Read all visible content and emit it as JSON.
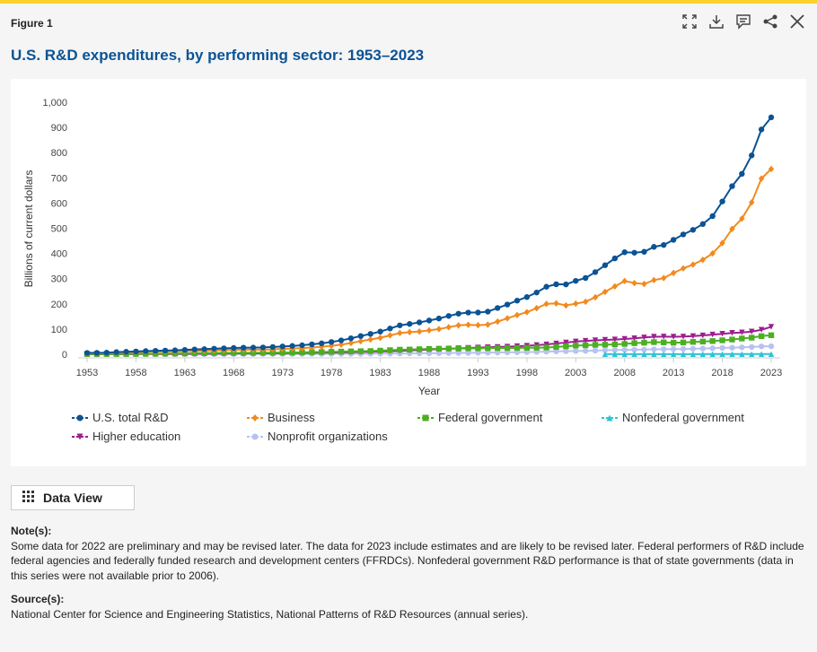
{
  "header": {
    "figure_label": "Figure 1",
    "title": "U.S. R&D expenditures, by performing sector: 1953–2023",
    "icons": [
      "expand-icon",
      "download-icon",
      "comment-icon",
      "share-icon",
      "close-icon"
    ]
  },
  "data_view_label": "Data View",
  "notes": {
    "heading": "Note(s):",
    "text": "Some data for 2022 are preliminary and may be revised later. The data for 2023 include estimates and are likely to be revised later. Federal performers of R&D include federal agencies and federally funded research and development centers (FFRDCs). Nonfederal government R&D performance is that of state governments (data in this series were not available prior to 2006)."
  },
  "source": {
    "heading": "Source(s):",
    "text": "National Center for Science and Engineering Statistics, National Patterns of R&D Resources (annual series)."
  },
  "chart_data": {
    "type": "line",
    "title": "U.S. R&D expenditures, by performing sector: 1953–2023",
    "xlabel": "Year",
    "ylabel": "Billions of current dollars",
    "xlim": [
      1953,
      2023
    ],
    "ylim": [
      0,
      1000
    ],
    "yticks": [
      0,
      100,
      200,
      300,
      400,
      500,
      600,
      700,
      800,
      900,
      1000
    ],
    "ytick_labels": [
      "0",
      "100",
      "200",
      "300",
      "400",
      "500",
      "600",
      "700",
      "800",
      "900",
      "1,000"
    ],
    "xticks": [
      1953,
      1958,
      1963,
      1968,
      1973,
      1978,
      1983,
      1988,
      1993,
      1998,
      2003,
      2008,
      2013,
      2018,
      2023
    ],
    "grid": false,
    "legend_placement": "bottom",
    "series": [
      {
        "name": "U.S. total R&D",
        "color": "#0b5394",
        "marker": "circle",
        "x_start": 1953,
        "values": [
          5.2,
          5.7,
          6.3,
          8.5,
          9.9,
          10.9,
          12.5,
          13.7,
          14.6,
          15.6,
          17.3,
          19.0,
          20.3,
          22.1,
          23.4,
          25.0,
          26.0,
          26.3,
          27.0,
          28.7,
          30.9,
          33.0,
          35.7,
          39.4,
          43.2,
          48.7,
          55.0,
          63.2,
          72.3,
          80.7,
          89.9,
          102.2,
          114.7,
          120.2,
          126.3,
          133.9,
          141.9,
          152.0,
          160.9,
          165.4,
          165.7,
          169.2,
          183.6,
          197.3,
          212.7,
          226.9,
          245.0,
          267.9,
          277.8,
          277.1,
          291.3,
          302.5,
          325.9,
          353.3,
          380.3,
          404.8,
          402.9,
          406.6,
          426.2,
          433.6,
          454.0,
          475.4,
          493.7,
          516.6,
          548.0,
          606.2,
          667.0,
          716.0,
          789.1,
          892.0,
          940.0
        ]
      },
      {
        "name": "Business",
        "color": "#f28a1e",
        "marker": "diamond",
        "x_start": 1953,
        "values": [
          3.6,
          4.1,
          4.6,
          6.6,
          7.7,
          8.4,
          9.6,
          10.5,
          10.9,
          11.5,
          12.6,
          13.5,
          14.2,
          15.5,
          16.4,
          17.4,
          18.3,
          18.1,
          18.3,
          19.6,
          21.3,
          22.9,
          24.2,
          26.9,
          29.8,
          33.3,
          38.1,
          44.5,
          51.8,
          58.6,
          65.3,
          74.8,
          84.2,
          87.8,
          90.2,
          94.9,
          99.9,
          107.4,
          114.7,
          116.8,
          115.4,
          117.4,
          129.8,
          142.4,
          155.4,
          167.1,
          182.8,
          199.9,
          202.0,
          193.9,
          200.7,
          208.3,
          226.2,
          247.7,
          269.3,
          290.7,
          282.4,
          278.9,
          294.1,
          302.3,
          322.5,
          340.7,
          355.8,
          374.7,
          400.1,
          441.1,
          497.5,
          538.2,
          602.5,
          697.1,
          735.0
        ]
      },
      {
        "name": "Federal government",
        "color": "#4caf22",
        "marker": "square",
        "x_start": 1953,
        "values": [
          1.0,
          1.0,
          1.1,
          1.2,
          1.4,
          1.6,
          1.9,
          2.0,
          2.5,
          2.9,
          3.3,
          4.0,
          4.5,
          5.0,
          5.2,
          5.4,
          5.4,
          5.7,
          6.1,
          6.3,
          6.5,
          6.7,
          7.6,
          8.3,
          8.8,
          9.7,
          10.4,
          11.4,
          12.1,
          12.7,
          14.3,
          16.2,
          18.0,
          18.6,
          19.8,
          21.0,
          22.0,
          22.8,
          22.7,
          23.7,
          23.7,
          24.3,
          24.7,
          24.8,
          25.1,
          25.6,
          26.0,
          26.8,
          29.0,
          31.8,
          34.4,
          35.6,
          37.3,
          38.0,
          39.3,
          41.0,
          43.9,
          45.8,
          48.1,
          47.1,
          45.7,
          46.6,
          49.0,
          50.3,
          52.3,
          55.3,
          58.4,
          62.5,
          65.8,
          71.9,
          75.5
        ]
      },
      {
        "name": "Nonfederal government",
        "color": "#2ec4d6",
        "marker": "triangle",
        "x_start": 2006,
        "values": [
          0.5,
          0.5,
          0.5,
          0.5,
          0.6,
          0.6,
          0.6,
          0.6,
          0.6,
          0.6,
          0.6,
          0.7,
          0.7,
          0.7,
          0.8,
          0.8,
          0.9,
          0.9
        ]
      },
      {
        "name": "Higher education",
        "color": "#9c1f8f",
        "marker": "triangle-down",
        "x_start": 1953,
        "values": [
          0.4,
          0.4,
          0.5,
          0.5,
          0.6,
          0.7,
          0.8,
          0.9,
          1.1,
          1.3,
          1.5,
          1.8,
          2.0,
          2.3,
          2.6,
          2.9,
          3.1,
          3.4,
          3.6,
          3.9,
          4.2,
          4.5,
          5.0,
          5.5,
          6.1,
          6.8,
          7.7,
          8.5,
          9.3,
          10.0,
          10.9,
          12.1,
          13.5,
          15.1,
          16.8,
          18.6,
          20.3,
          22.0,
          23.6,
          25.0,
          26.3,
          27.6,
          28.7,
          29.9,
          31.6,
          33.6,
          36.2,
          39.0,
          42.6,
          46.5,
          50.6,
          53.1,
          55.3,
          56.9,
          58.3,
          60.6,
          63.3,
          66.6,
          69.6,
          69.9,
          69.4,
          70.1,
          71.9,
          74.6,
          78.0,
          81.1,
          84.6,
          86.5,
          89.9,
          97.0,
          108.8
        ]
      },
      {
        "name": "Nonprofit organizations",
        "color": "#b8c2f0",
        "marker": "circle",
        "x_start": 1953,
        "values": [
          0.2,
          0.2,
          0.2,
          0.2,
          0.2,
          0.3,
          0.3,
          0.3,
          0.3,
          0.4,
          0.4,
          0.5,
          0.5,
          0.6,
          0.6,
          0.7,
          0.7,
          0.8,
          0.8,
          0.8,
          0.9,
          1.0,
          1.1,
          1.2,
          1.3,
          1.5,
          1.6,
          1.8,
          2.0,
          2.2,
          2.5,
          2.8,
          3.1,
          3.4,
          3.7,
          4.0,
          4.4,
          4.8,
          5.2,
          5.6,
          6.0,
          6.4,
          6.9,
          7.4,
          8.0,
          8.5,
          9.4,
          10.4,
          11.4,
          12.0,
          12.8,
          13.5,
          14.5,
          15.8,
          16.7,
          17.2,
          17.9,
          18.5,
          19.5,
          20.2,
          20.5,
          21.0,
          21.9,
          22.7,
          24.0,
          25.6,
          26.0,
          27.5,
          28.8,
          31.0,
          31.6
        ]
      }
    ]
  }
}
